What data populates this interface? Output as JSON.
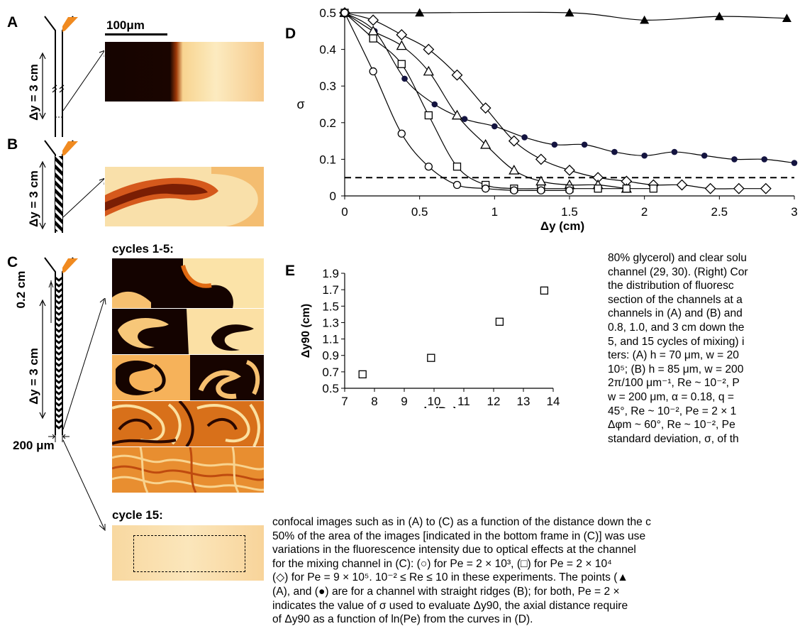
{
  "panels": {
    "A": {
      "letter": "A",
      "dy_label": "Δy = 3 cm",
      "scale_label": "100μm"
    },
    "B": {
      "letter": "B",
      "dy_label": "Δy = 3 cm"
    },
    "C": {
      "letter": "C",
      "segment_label": "0.2 cm",
      "dy_label": "Δy = 3 cm",
      "width_label": "200 μm",
      "cycles_label_top": "cycles 1-5:",
      "cycles_label_bottom": "cycle 15:"
    }
  },
  "colors": {
    "dye": "#1a0500",
    "clear": "#fbe6b4",
    "mid": "#f08a1a",
    "channel_inlet": "#f08a20"
  },
  "chart_data": [
    {
      "id": "D",
      "panel_letter": "D",
      "type": "line",
      "xlabel": "Δy (cm)",
      "ylabel": "σ",
      "xlim": [
        0,
        3
      ],
      "ylim": [
        0,
        0.5
      ],
      "xticks": [
        "0",
        "0.5",
        "1",
        "1.5",
        "2",
        "2.5",
        "3"
      ],
      "yticks": [
        "0",
        "0.1",
        "0.2",
        "0.3",
        "0.4",
        "0.5"
      ],
      "reference_line": {
        "y": 0.05,
        "style": "dashed"
      },
      "series": [
        {
          "marker": "filled-triangle",
          "x": [
            0,
            0.5,
            1.5,
            2,
            2.5,
            2.95
          ],
          "y": [
            0.5,
            0.5,
            0.5,
            0.48,
            0.49,
            0.485
          ]
        },
        {
          "marker": "filled-circle",
          "x": [
            0,
            0.2,
            0.4,
            0.6,
            0.8,
            1,
            1.2,
            1.4,
            1.6,
            1.8,
            2,
            2.2,
            2.4,
            2.6,
            2.8,
            3
          ],
          "y": [
            0.5,
            0.45,
            0.32,
            0.25,
            0.21,
            0.19,
            0.16,
            0.14,
            0.14,
            0.12,
            0.11,
            0.12,
            0.11,
            0.1,
            0.1,
            0.09
          ]
        },
        {
          "marker": "open-diamond",
          "x": [
            0,
            0.19,
            0.38,
            0.56,
            0.75,
            0.94,
            1.13,
            1.31,
            1.5,
            1.69,
            1.88,
            2.06,
            2.25,
            2.44,
            2.63,
            2.81
          ],
          "y": [
            0.5,
            0.48,
            0.44,
            0.4,
            0.33,
            0.24,
            0.15,
            0.1,
            0.07,
            0.05,
            0.04,
            0.03,
            0.03,
            0.02,
            0.02,
            0.02
          ]
        },
        {
          "marker": "open-triangle",
          "x": [
            0,
            0.19,
            0.38,
            0.56,
            0.75,
            0.94,
            1.13,
            1.31,
            1.5,
            1.69,
            1.88
          ],
          "y": [
            0.5,
            0.45,
            0.41,
            0.34,
            0.22,
            0.14,
            0.07,
            0.04,
            0.03,
            0.03,
            0.02
          ]
        },
        {
          "marker": "open-square",
          "x": [
            0,
            0.19,
            0.38,
            0.56,
            0.75,
            0.94,
            1.13,
            1.31,
            1.5,
            1.69,
            1.88,
            2.06
          ],
          "y": [
            0.5,
            0.43,
            0.36,
            0.22,
            0.08,
            0.03,
            0.02,
            0.02,
            0.02,
            0.02,
            0.02,
            0.02
          ]
        },
        {
          "marker": "open-circle",
          "x": [
            0,
            0.19,
            0.38,
            0.56,
            0.75,
            0.94,
            1.13,
            1.31,
            1.5
          ],
          "y": [
            0.5,
            0.34,
            0.17,
            0.08,
            0.03,
            0.02,
            0.015,
            0.015,
            0.015
          ]
        }
      ]
    },
    {
      "id": "E",
      "panel_letter": "E",
      "type": "scatter",
      "xlabel": "ln(Pe)",
      "ylabel": "Δy90 (cm)",
      "xlim": [
        7,
        14
      ],
      "ylim": [
        0.5,
        1.9
      ],
      "xticks": [
        "7",
        "8",
        "9",
        "10",
        "11",
        "12",
        "13",
        "14"
      ],
      "yticks": [
        "0.5",
        "0.7",
        "0.9",
        "1.1",
        "1.3",
        "1.5",
        "1.7",
        "1.9"
      ],
      "series": [
        {
          "marker": "open-square",
          "x": [
            7.6,
            9.9,
            12.2,
            13.7
          ],
          "y": [
            0.67,
            0.87,
            1.31,
            1.69
          ]
        }
      ]
    }
  ],
  "caption": {
    "right_lines": [
      "80% glycerol) and clear solu",
      "channel (29, 30). (Right) Cor",
      "the distribution of fluoresc",
      "section of the channels at a",
      "channels in (A) and (B) and",
      "0.8, 1.0, and 3 cm down the",
      "5, and 15 cycles of mixing) i",
      "ters: (A) h = 70 μm, w = 20",
      "10⁵; (B) h = 85 μm, w = 200",
      "2π/100 μm⁻¹, Re ~ 10⁻², P",
      "w = 200 μm, α = 0.18, q =",
      "45°, Re ~ 10⁻², Pe = 2 × 1",
      "Δφm ~ 60°, Re ~ 10⁻², Pe",
      "standard deviation, σ, of th"
    ],
    "bottom_lines": [
      "confocal images such as in (A) to (C) as a function of the distance down the c",
      "50% of the area of the images [indicated in the bottom frame in (C)] was use",
      "variations in the fluorescence intensity due to optical effects at the channel",
      "for the mixing channel in (C): (○) for Pe = 2 × 10³, (□) for Pe = 2 × 10⁴",
      "(◇) for Pe = 9 × 10⁵. 10⁻² ≤ Re ≤ 10 in these experiments. The points (▲",
      "(A), and (●) are for a channel with straight ridges (B); for both, Pe = 2 ×",
      "indicates the value of σ used to evaluate Δy90, the axial distance require",
      "of Δy90 as a function of ln(Pe) from the curves in (D)."
    ]
  }
}
